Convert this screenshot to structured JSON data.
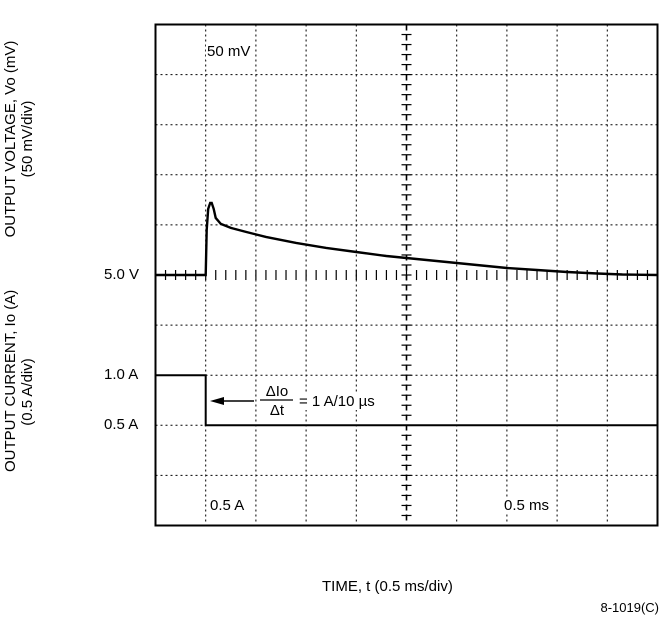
{
  "chart_data": {
    "type": "line",
    "title": "",
    "grid": true,
    "divisions": {
      "x": 10,
      "y": 8
    },
    "x": {
      "label": "TIME, t (0.5 ms/div)",
      "scale_label": "0.5 ms",
      "range_divisions": [
        0,
        10
      ]
    },
    "voltage_channel": {
      "ylabel_line1": "OUTPUT VOLTAGE, Vo (mV)",
      "ylabel_line2": "(50 mV/div)",
      "scale_label": "50 mV",
      "reference_label": "5.0 V",
      "series": {
        "x_div": [
          0,
          0.96,
          1.0,
          1.02,
          1.05,
          1.09,
          1.12,
          1.16,
          1.2,
          1.3,
          1.5,
          1.8,
          2.2,
          2.8,
          3.4,
          4.0,
          4.6,
          5.2,
          5.8,
          6.4,
          7.0,
          7.6,
          8.2,
          8.8,
          9.3,
          10
        ],
        "mv": [
          0,
          0,
          0,
          45,
          66,
          72,
          72,
          66,
          57,
          51,
          47,
          43,
          38,
          32,
          27,
          23,
          19,
          16,
          13,
          10,
          7,
          5,
          3,
          1.5,
          0.5,
          0
        ]
      }
    },
    "current_channel": {
      "ylabel_line1": "OUTPUT CURRENT, Io (A)",
      "ylabel_line2": "(0.5 A/div)",
      "scale_label": "0.5 A",
      "level_labels": [
        "1.0 A",
        "0.5 A"
      ],
      "series": {
        "x_div": [
          0,
          1.0,
          1.0,
          10
        ],
        "amps": [
          1.0,
          1.0,
          0.5,
          0.5
        ]
      }
    },
    "annotation": {
      "numerator": "ΔIo",
      "denominator": "Δt",
      "equals_text": "= 1 A/10 µs"
    },
    "figure_id": "8-1019(C)"
  }
}
